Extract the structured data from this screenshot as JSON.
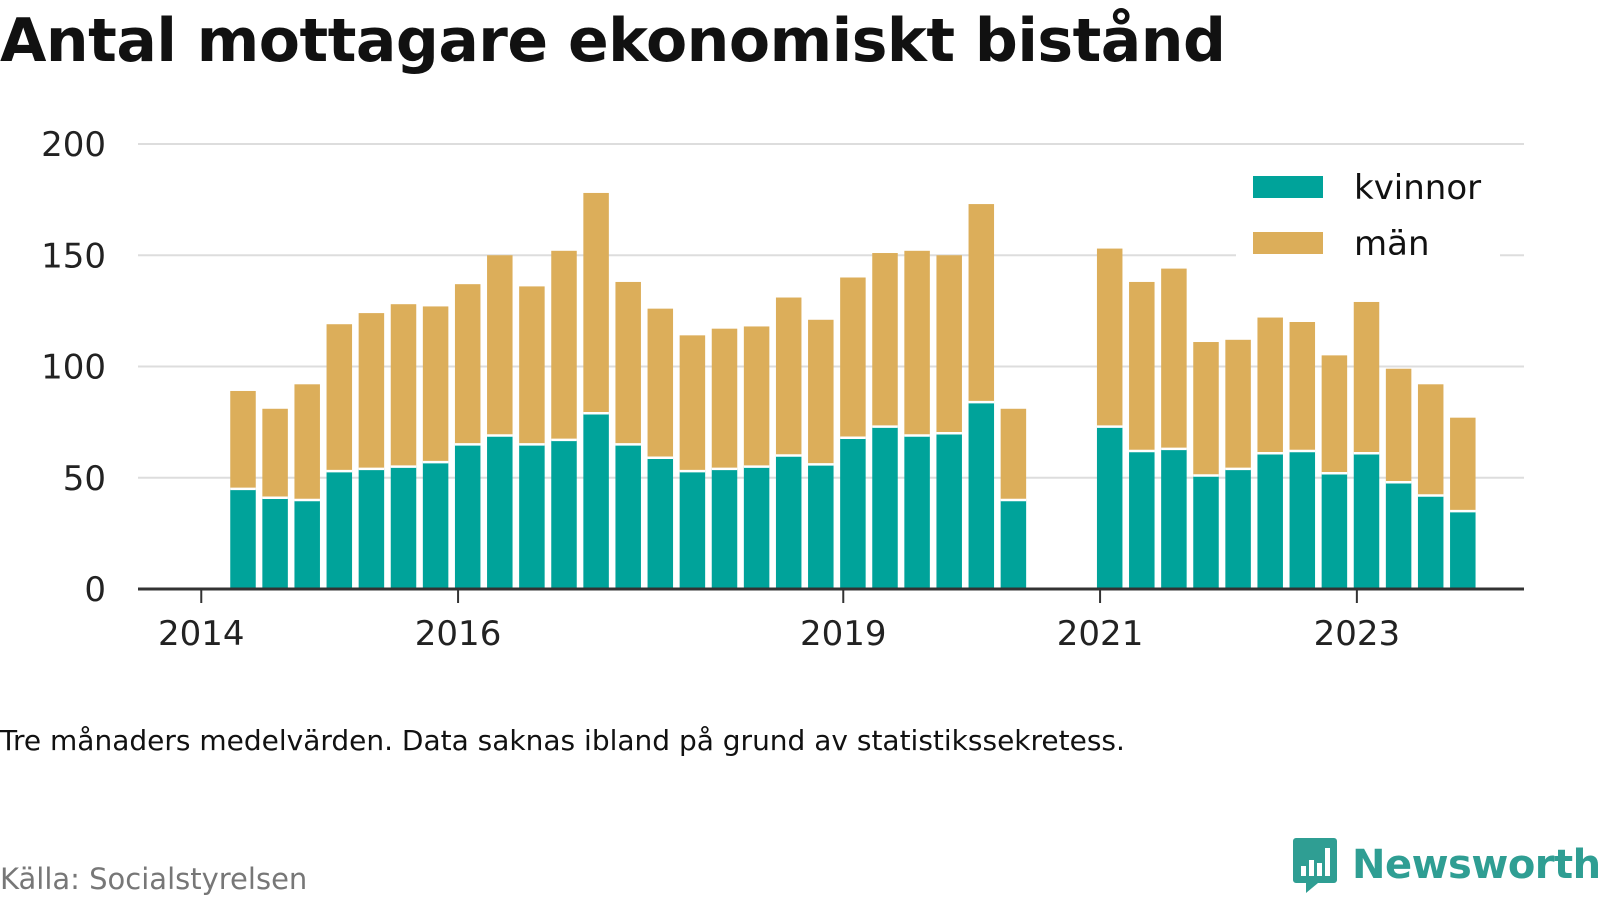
{
  "title": "Antal mottagare ekonomiskt bistånd",
  "note": "Tre månaders medelvärden. Data saknas ibland på grund av statistikssekretess.",
  "source": "Källa: Socialstyrelsen",
  "brand": {
    "name": "Newsworthy",
    "icon": "bar-chart-speech-bubble-icon",
    "color": "#2f9e93"
  },
  "colors": {
    "kvinnor": "#00a39a",
    "man": "#dcae5a",
    "grid": "#dddddd",
    "axis": "#333333"
  },
  "chart_data": {
    "type": "bar",
    "stacked": true,
    "title": "Antal mottagare ekonomiskt bistånd",
    "xlabel": "",
    "ylabel": "",
    "ylim": [
      0,
      200
    ],
    "yticks": [
      0,
      50,
      100,
      150,
      200
    ],
    "xticks": [
      "2014",
      "2016",
      "2019",
      "2021",
      "2023"
    ],
    "grid": true,
    "legend_position": "top-right",
    "categories": [
      "2014-Q2",
      "2014-Q3",
      "2014-Q4",
      "2015-Q1",
      "2015-Q2",
      "2015-Q3",
      "2015-Q4",
      "2016-Q1",
      "2016-Q2",
      "2016-Q3",
      "2016-Q4",
      "2017-Q1",
      "2017-Q2",
      "2017-Q3",
      "2017-Q4",
      "2018-Q1",
      "2018-Q2",
      "2018-Q3",
      "2018-Q4",
      "2019-Q1",
      "2019-Q2",
      "2019-Q3",
      "2019-Q4",
      "2020-Q1",
      "2020-Q2",
      "2020-Q3",
      "2020-Q4",
      "2021-Q1",
      "2021-Q2",
      "2021-Q3",
      "2021-Q4",
      "2022-Q1",
      "2022-Q2",
      "2022-Q3",
      "2022-Q4",
      "2023-Q1",
      "2023-Q2",
      "2023-Q3",
      "2023-Q4"
    ],
    "series": [
      {
        "name": "kvinnor",
        "values": [
          45,
          41,
          40,
          53,
          54,
          55,
          57,
          65,
          69,
          65,
          67,
          79,
          65,
          59,
          53,
          54,
          55,
          60,
          56,
          68,
          73,
          69,
          70,
          84,
          40,
          null,
          null,
          73,
          62,
          63,
          51,
          54,
          61,
          62,
          52,
          61,
          48,
          42,
          35
        ]
      },
      {
        "name": "män",
        "values": [
          44,
          40,
          52,
          66,
          70,
          73,
          70,
          72,
          81,
          71,
          85,
          99,
          73,
          67,
          61,
          63,
          63,
          71,
          65,
          72,
          78,
          83,
          80,
          89,
          41,
          null,
          null,
          80,
          76,
          81,
          60,
          58,
          61,
          58,
          53,
          68,
          51,
          50,
          42
        ]
      }
    ]
  }
}
